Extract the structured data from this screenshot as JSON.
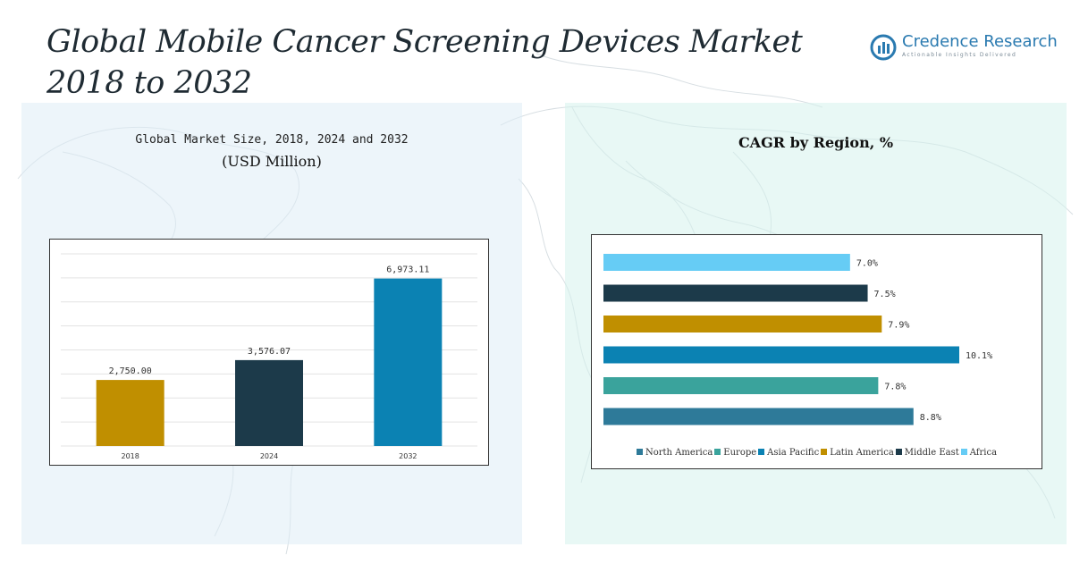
{
  "header": {
    "title_line1": "Global Mobile Cancer Screening Devices Market",
    "title_line2": "2018 to 2032"
  },
  "logo": {
    "name": "Credence Research",
    "tagline": "Actionable Insights Delivered",
    "color": "#2a7ab0"
  },
  "left_panel": {
    "subtitle": "Global Market Size, 2018, 2024 and 2032",
    "unit": "(USD Million)"
  },
  "right_panel": {
    "title": "CAGR by Region, %"
  },
  "chart_data": [
    {
      "type": "bar",
      "title": "Global Market Size, 2018, 2024 and 2032",
      "ylabel": "USD Million",
      "categories": [
        "2018",
        "2024",
        "2032"
      ],
      "values": [
        2750.0,
        3576.07,
        6973.11
      ],
      "labels": [
        "2,750.00",
        "3,576.07",
        "6,973.11"
      ],
      "colors": [
        "#c08f00",
        "#1c3a4a",
        "#0b82b3"
      ],
      "ylim": [
        0,
        8000
      ],
      "grid": true
    },
    {
      "type": "bar",
      "orientation": "horizontal",
      "title": "CAGR by Region, %",
      "categories": [
        "North America",
        "Europe",
        "Asia Pacific",
        "Latin America",
        "Middle East",
        "Africa"
      ],
      "values": [
        8.8,
        7.8,
        10.1,
        7.9,
        7.5,
        7.0
      ],
      "labels": [
        "8.8%",
        "7.8%",
        "10.1%",
        "7.9%",
        "7.5%",
        "7.0%"
      ],
      "colors": [
        "#2e7a99",
        "#3aa39c",
        "#0b82b3",
        "#c08f00",
        "#1c3a4a",
        "#66ccf5"
      ],
      "xlim": [
        0,
        10.1
      ],
      "legend": "bottom"
    }
  ]
}
